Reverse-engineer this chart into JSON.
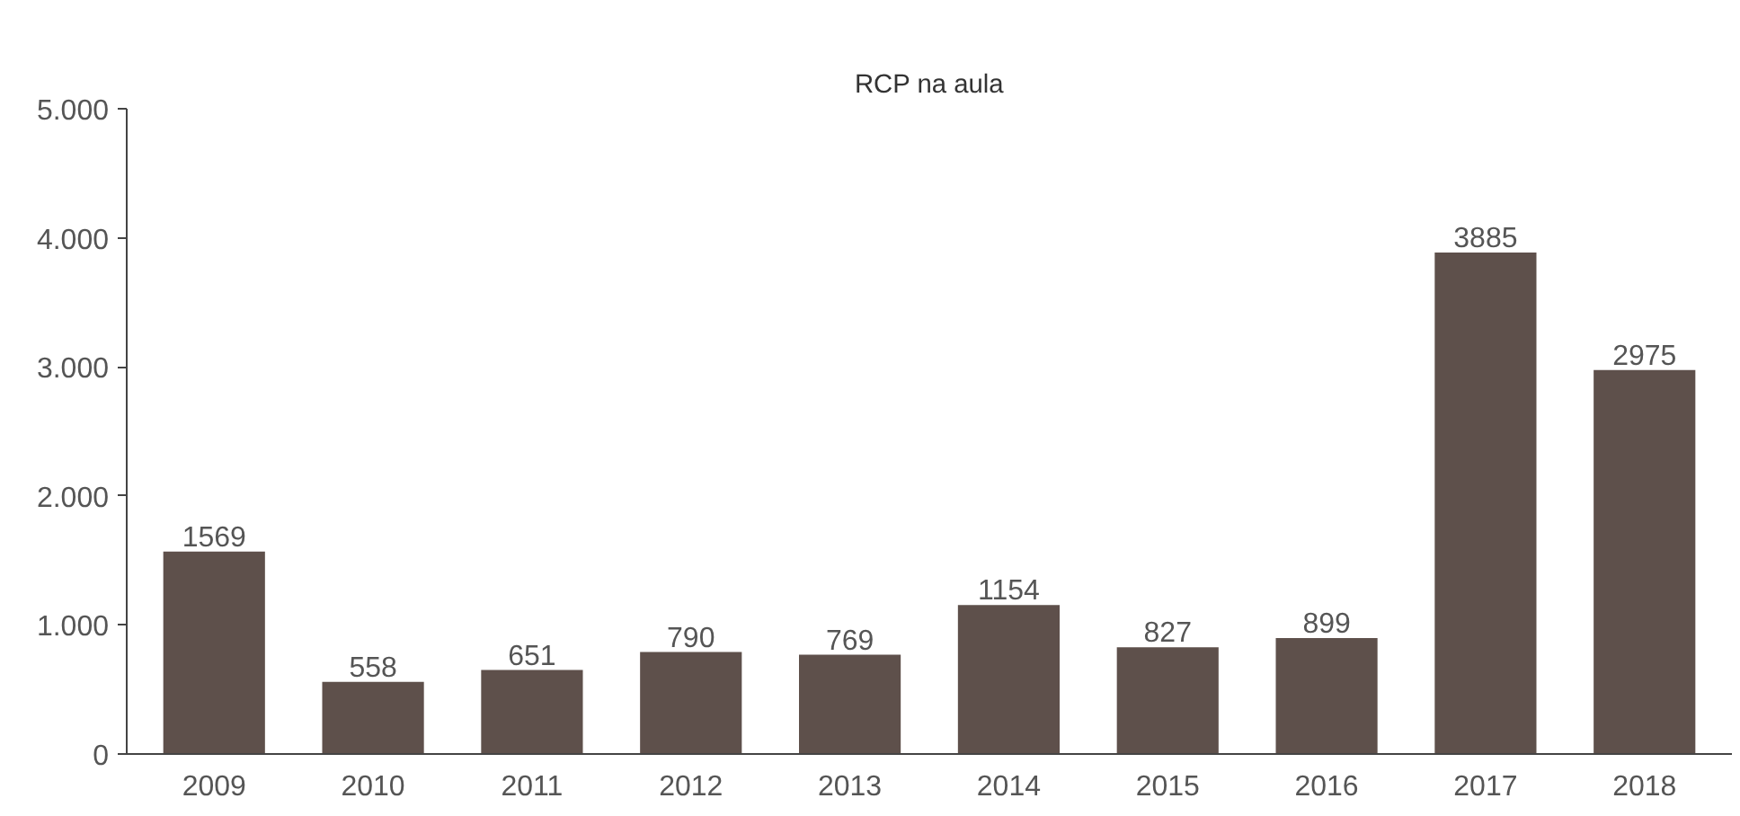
{
  "chart_data": {
    "type": "bar",
    "title": "RCP na aula",
    "categories": [
      "2009",
      "2010",
      "2011",
      "2012",
      "2013",
      "2014",
      "2015",
      "2016",
      "2017",
      "2018"
    ],
    "values": [
      1569,
      558,
      651,
      790,
      769,
      1154,
      827,
      899,
      3885,
      2975
    ],
    "color": "#5e504b",
    "ylim": [
      0,
      5000
    ],
    "yticks": [
      0,
      {
        "value": 1000,
        "label": "1.000"
      },
      {
        "value": 2000,
        "label": "2.000"
      },
      {
        "value": 3000,
        "label": "3.000"
      },
      {
        "value": 4000,
        "label": "4.000"
      },
      {
        "value": 5000,
        "label": "5.000"
      }
    ],
    "data_labels": true
  }
}
